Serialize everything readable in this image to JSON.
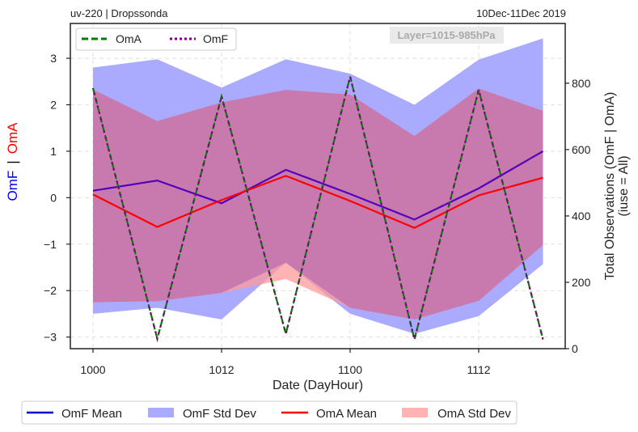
{
  "header": {
    "left": "uv-220  |  Dropssonda",
    "right": "10Dec-11Dec 2019",
    "layer_label": "Layer=1015-985hPa"
  },
  "colors": {
    "omf_mean": "#5500bb",
    "omf_std": "#aaaaff",
    "oma_mean": "#ff0000",
    "oma_std": "#ff9999",
    "overlap": "#c87aae",
    "count_oma": "#008000",
    "count_omf": "#800080",
    "legend_omf_mean": "#0000dd",
    "grid": "#d8d8d8"
  },
  "chart_data": {
    "type": "line",
    "title": "",
    "xlabel": "Date (DayHour)",
    "ylabel_left_parts": [
      "OmF",
      "|",
      "OmA"
    ],
    "ylabel_right": [
      "Total Observations (OmF | OmA)",
      "(iuse = All)"
    ],
    "x": [
      1000,
      1006,
      1012,
      1018,
      1100,
      1106,
      1112,
      1118
    ],
    "x_ticks": [
      "1000",
      "1012",
      "1100",
      "1112"
    ],
    "left_ylim": [
      -3.25,
      3.75
    ],
    "left_yticks": [
      "3",
      "2",
      "1",
      "0",
      "−1",
      "−2",
      "−3"
    ],
    "right_ylim": [
      0,
      980
    ],
    "right_yticks": [
      "800",
      "600",
      "400",
      "200",
      "0"
    ],
    "grid": true,
    "series": [
      {
        "name": "OmF Mean",
        "values": [
          0.15,
          0.37,
          -0.12,
          0.6,
          0.08,
          -0.47,
          0.2,
          1.0
        ]
      },
      {
        "name": "OmF Std Dev",
        "upper": [
          2.8,
          2.98,
          2.37,
          2.98,
          2.67,
          2.0,
          2.97,
          3.43
        ],
        "lower": [
          -2.5,
          -2.37,
          -2.62,
          -1.4,
          -2.5,
          -2.93,
          -2.55,
          -1.43
        ]
      },
      {
        "name": "OmA Mean",
        "values": [
          0.07,
          -0.63,
          -0.05,
          0.47,
          -0.07,
          -0.65,
          0.05,
          0.43
        ]
      },
      {
        "name": "OmA Std Dev",
        "upper": [
          2.33,
          1.65,
          2.05,
          2.32,
          2.22,
          1.33,
          2.35,
          1.87
        ],
        "lower": [
          -2.25,
          -2.23,
          -2.05,
          -1.75,
          -2.37,
          -2.62,
          -2.22,
          -1.02
        ]
      },
      {
        "name": "OmA",
        "axis": "right",
        "values": [
          785,
          30,
          760,
          45,
          820,
          28,
          780,
          28
        ]
      },
      {
        "name": "OmF",
        "axis": "right",
        "values": [
          785,
          30,
          760,
          45,
          820,
          28,
          780,
          28
        ]
      }
    ],
    "legend_top": [
      "OmA",
      "OmF"
    ],
    "legend_bottom": [
      "OmF Mean",
      "OmF Std Dev",
      "OmA Mean",
      "OmA Std Dev"
    ]
  }
}
